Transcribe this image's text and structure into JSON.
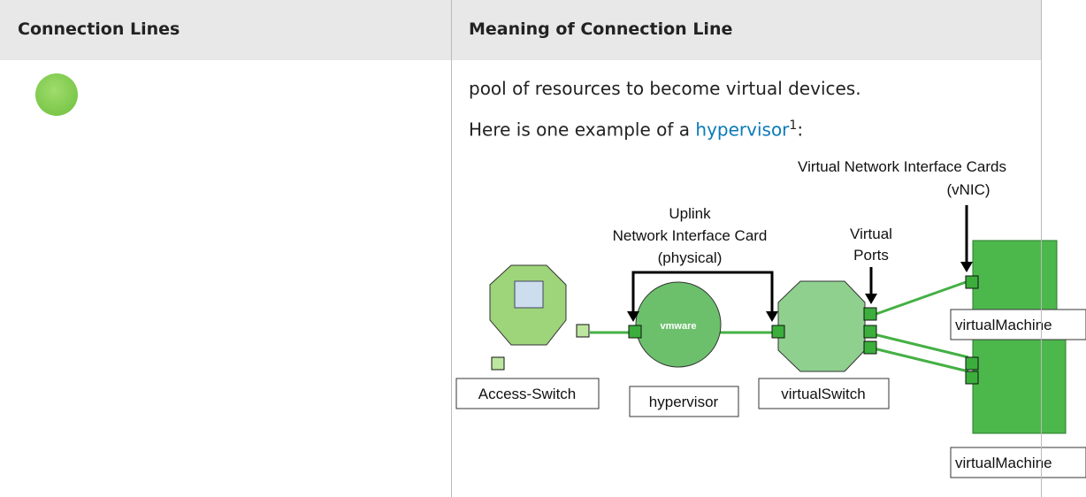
{
  "table": {
    "headers": [
      "Connection Lines",
      "Meaning of Connection Line"
    ],
    "rows": [
      {
        "meaning": {
          "line": "pool of resources to become virtual devices.",
          "example": {
            "prefix": "Here is one example of a",
            "link": "hypervisor",
            "footnote": "1",
            "suffix": ":"
          }
        }
      }
    ]
  },
  "diagram": {
    "vnic_label": [
      "Virtual Network Interface Cards",
      "(vNIC)"
    ],
    "uplink_label": [
      "Uplink",
      "Network Interface Card",
      "(physical)"
    ],
    "ports_label": [
      "Virtual",
      "Ports"
    ],
    "logo": "vmware",
    "nodes": [
      "Access-Switch",
      "hypervisor",
      "virtualSwitch",
      "virtualMachine",
      "virtualMachine"
    ]
  }
}
